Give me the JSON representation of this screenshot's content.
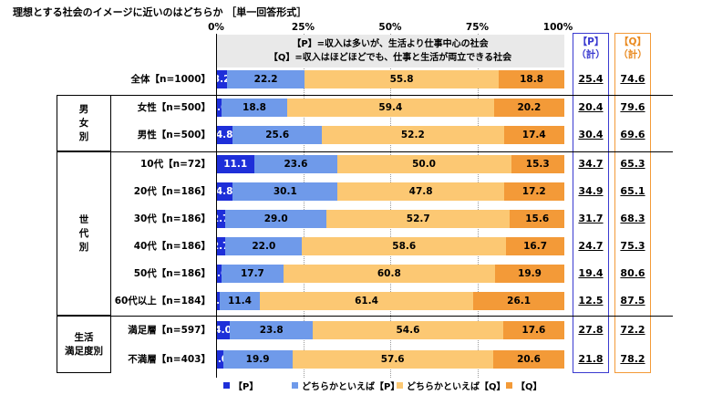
{
  "title": "理想とする社会のイメージに近いのはどちらか ［単一回答形式］",
  "axis_ticks": [
    "0%",
    "25%",
    "50%",
    "75%",
    "100%"
  ],
  "legend_top": {
    "line1": "【P】=収入は多いが、生活より仕事中心の社会",
    "line2": "【Q】=収入はほどほどでも、仕事と生活が両立できる社会"
  },
  "totals_headers": {
    "p": "【P】\n（計）",
    "q": "【Q】\n（計）"
  },
  "groups": [
    {
      "label": "男\n女\n別"
    },
    {
      "label": "世\n代\n別"
    },
    {
      "label": "生活\n満足度別"
    }
  ],
  "colors": {
    "p": "#1e2fd9",
    "lean_p": "#6f9aea",
    "lean_q": "#fcc873",
    "q": "#f39a38",
    "p_total_border": "#3a3ad0",
    "q_total_border": "#f39a38"
  },
  "chart_data": {
    "type": "bar",
    "orientation": "horizontal",
    "stacked": true,
    "xlim": [
      0,
      100
    ],
    "categories": [
      "全体【n=1000】",
      "女性【n=500】",
      "男性【n=500】",
      "10代【n=72】",
      "20代【n=186】",
      "30代【n=186】",
      "40代【n=186】",
      "50代【n=186】",
      "60代以上【n=184】",
      "満足層【n=597】",
      "不満層【n=403】"
    ],
    "series": [
      {
        "name": "【P】",
        "values": [
          3.2,
          1.6,
          4.8,
          11.1,
          4.8,
          2.7,
          2.7,
          1.6,
          1.1,
          4.0,
          2.0
        ]
      },
      {
        "name": "どちらかといえば【P】",
        "values": [
          22.2,
          18.8,
          25.6,
          23.6,
          30.1,
          29.0,
          22.0,
          17.7,
          11.4,
          23.8,
          19.9
        ]
      },
      {
        "name": "どちらかといえば【Q】",
        "values": [
          55.8,
          59.4,
          52.2,
          50.0,
          47.8,
          52.7,
          58.6,
          60.8,
          61.4,
          54.6,
          57.6
        ]
      },
      {
        "name": "【Q】",
        "values": [
          18.8,
          20.2,
          17.4,
          15.3,
          17.2,
          15.6,
          16.7,
          19.9,
          26.1,
          17.6,
          20.6
        ]
      }
    ],
    "totals": {
      "p": [
        "25.4",
        "20.4",
        "30.4",
        "34.7",
        "34.9",
        "31.7",
        "24.7",
        "19.4",
        "12.5",
        "27.8",
        "21.8"
      ],
      "q": [
        "74.6",
        "79.6",
        "69.6",
        "65.3",
        "65.1",
        "68.3",
        "75.3",
        "80.6",
        "87.5",
        "72.2",
        "78.2"
      ]
    },
    "labels": [
      [
        "3.2",
        "22.2",
        "55.8",
        "18.8"
      ],
      [
        "1.6",
        "18.8",
        "59.4",
        "20.2"
      ],
      [
        "4.8",
        "25.6",
        "52.2",
        "17.4"
      ],
      [
        "11.1",
        "23.6",
        "50.0",
        "15.3"
      ],
      [
        "4.8",
        "30.1",
        "47.8",
        "17.2"
      ],
      [
        "2.7",
        "29.0",
        "52.7",
        "15.6"
      ],
      [
        "2.7",
        "22.0",
        "58.6",
        "16.7"
      ],
      [
        "1.6",
        "17.7",
        "60.8",
        "19.9"
      ],
      [
        "1.1",
        "11.4",
        "61.4",
        "26.1"
      ],
      [
        "4.0",
        "23.8",
        "54.6",
        "17.6"
      ],
      [
        "2.0",
        "19.9",
        "57.6",
        "20.6"
      ]
    ]
  }
}
